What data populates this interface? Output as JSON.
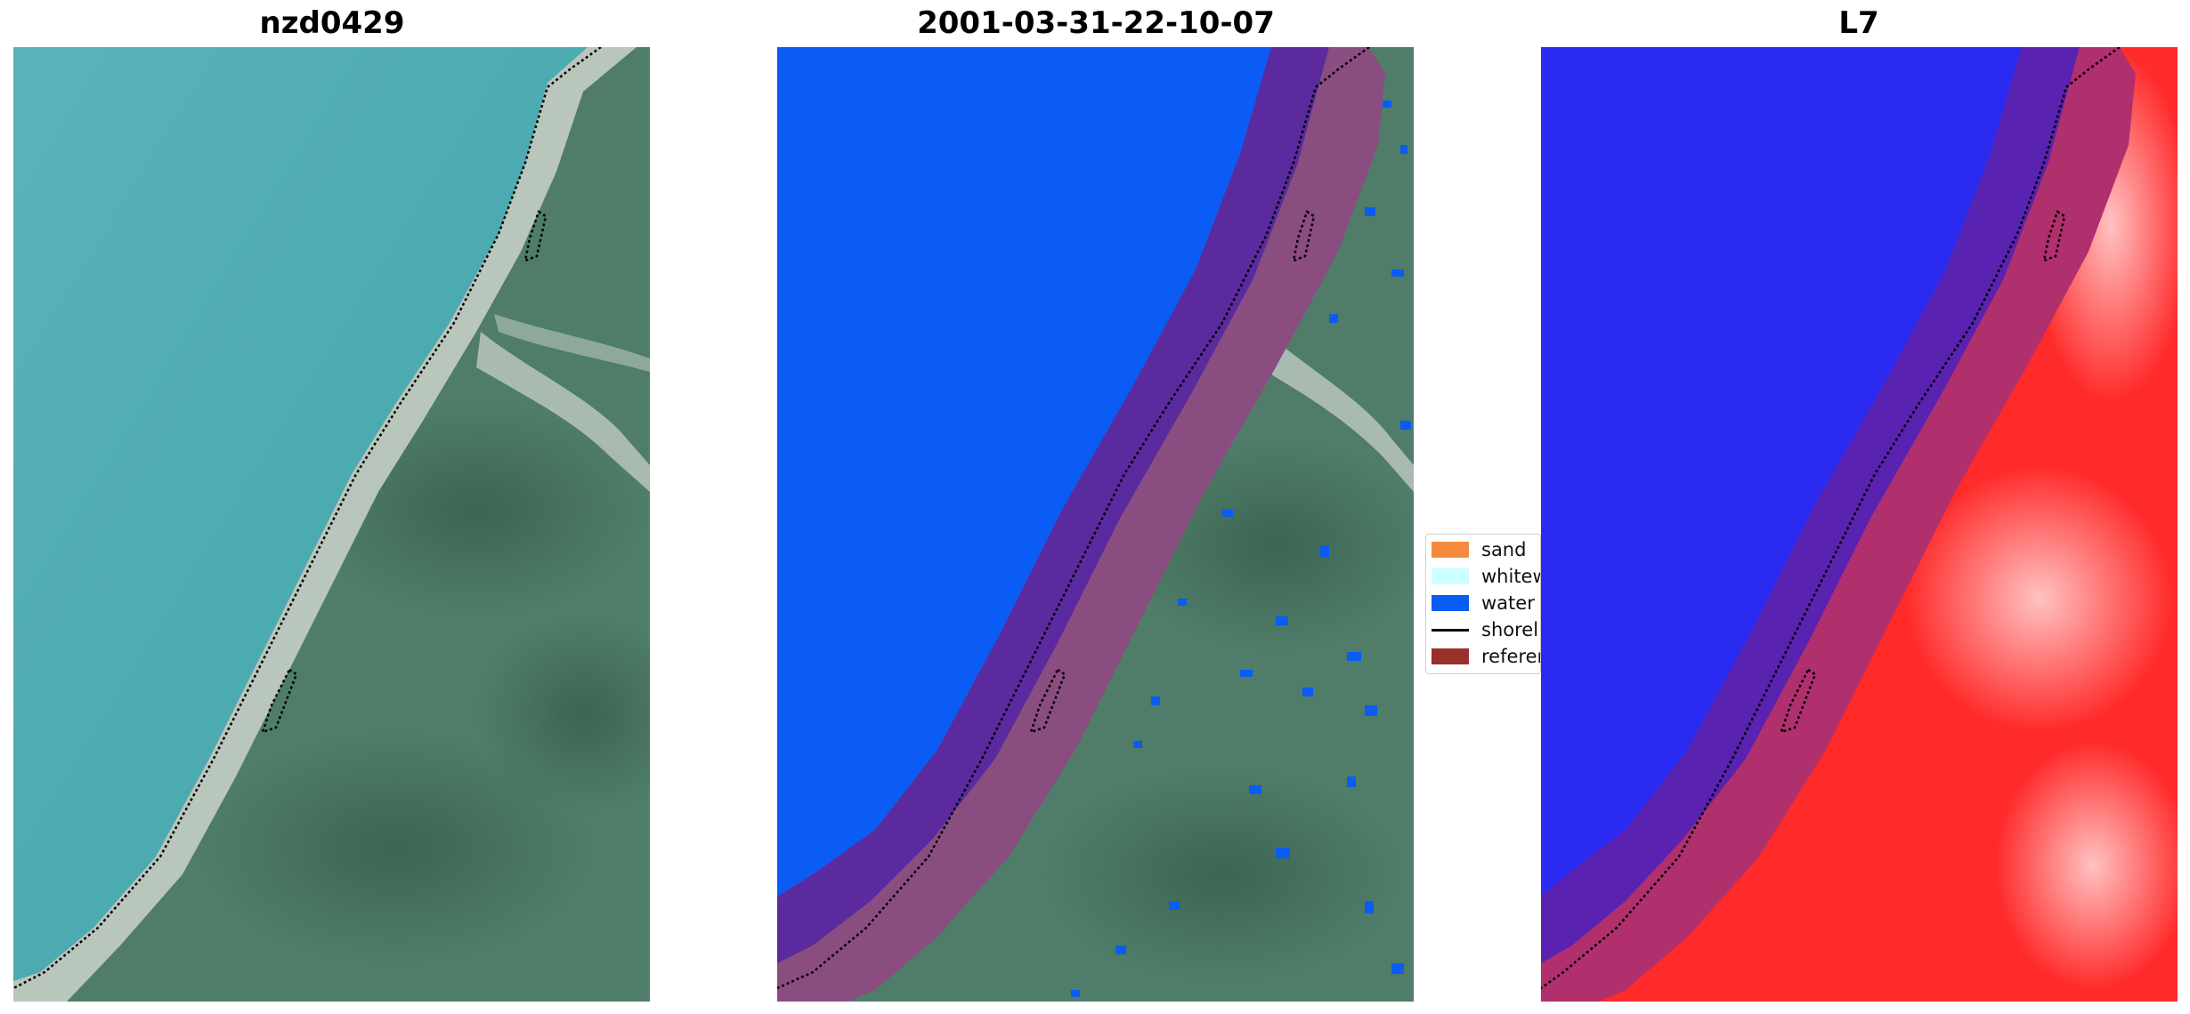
{
  "panels": [
    {
      "title": "nzd0429",
      "image": "rgb-satellite-image"
    },
    {
      "title": "2001-03-31-22-10-07",
      "image": "classified-image-overlay"
    },
    {
      "title": "L7",
      "image": "water-index-image"
    }
  ],
  "legend": {
    "items": [
      {
        "label": "sand",
        "color": "#f58a3c",
        "icon": "swatch"
      },
      {
        "label": "whitewater",
        "color": "#ccffff",
        "icon": "swatch"
      },
      {
        "label": "water",
        "color": "#0a5cf5",
        "icon": "swatch"
      },
      {
        "label": "shoreline",
        "color": "#000000",
        "icon": "line"
      },
      {
        "label": "reference",
        "color": "#99302c",
        "icon": "swatch"
      }
    ]
  },
  "colors": {
    "sea": "#47a8b3",
    "land": "#4d7a66",
    "beach": "#c7cfc4",
    "water_class": "#0a5cf5",
    "buffer_on_water": "#5a2a9e",
    "buffer_on_land": "#8a4d80",
    "index_blue": "#2a2af0",
    "index_red": "#ff2a2a"
  }
}
